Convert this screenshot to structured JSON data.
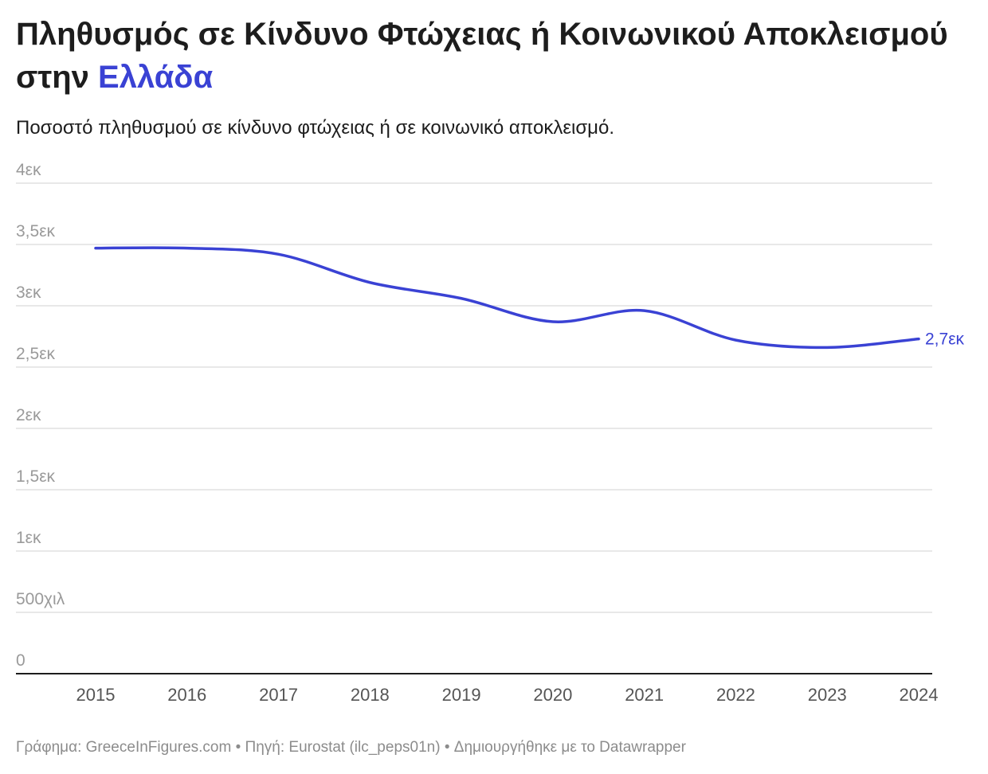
{
  "title": {
    "part1": "Πληθυσμός σε Κίνδυνο Φτώχειας ή Κοινωνικού Αποκλεισμού στην",
    "highlight": "Ελλάδα"
  },
  "subtitle": "Ποσοστό πληθυσμού σε κίνδυνο φτώχειας ή σε κοινωνικό αποκλεισμό.",
  "colors": {
    "accent": "#3a42d4",
    "gridline": "#e0e0e0",
    "axis": "#1d1d1d",
    "tick_text": "#9a9a9a",
    "x_tick_text": "#555555"
  },
  "chart_data": {
    "type": "line",
    "x": [
      "2015",
      "2016",
      "2017",
      "2018",
      "2019",
      "2020",
      "2021",
      "2022",
      "2023",
      "2024"
    ],
    "series": [
      {
        "values": [
          3.47,
          3.47,
          3.42,
          3.19,
          3.06,
          2.87,
          2.96,
          2.72,
          2.66,
          2.73
        ]
      }
    ],
    "ylim": [
      0,
      4
    ],
    "yticks": [
      0,
      0.5,
      1,
      1.5,
      2,
      2.5,
      3,
      3.5,
      4
    ],
    "ytick_labels": [
      "0",
      "500χιλ",
      "1εκ",
      "1,5εκ",
      "2εκ",
      "2,5εκ",
      "3εκ",
      "3,5εκ",
      "4εκ"
    ],
    "end_label": "2,7εκ",
    "grid": true
  },
  "footer": "Γράφημα: GreeceInFigures.com • Πηγή: Eurostat (ilc_peps01n) • Δημιουργήθηκε με το Datawrapper"
}
